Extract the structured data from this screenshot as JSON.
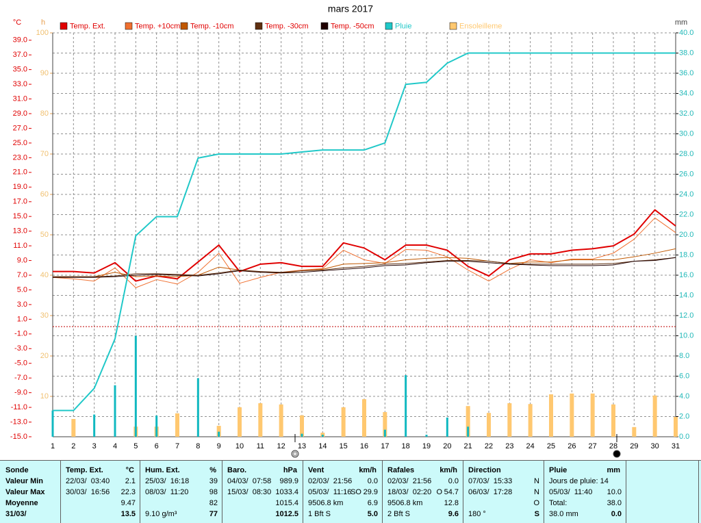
{
  "chart_data": {
    "type": "combo",
    "title": "mars 2017",
    "y_label": "°C",
    "y3_label": "h",
    "y2_label": "mm",
    "categories": [
      "1",
      "2",
      "3",
      "4",
      "5",
      "6",
      "7",
      "8",
      "9",
      "10",
      "11",
      "12",
      "13",
      "14",
      "15",
      "16",
      "17",
      "18",
      "19",
      "20",
      "21",
      "22",
      "23",
      "24",
      "25",
      "26",
      "27",
      "28",
      "29",
      "30",
      "31"
    ],
    "ylim": [
      -15,
      40
    ],
    "yticks": [
      {
        "value": -15,
        "label": "-15.0"
      },
      {
        "value": -13,
        "label": "-13.0"
      },
      {
        "value": -11,
        "label": "-11.0"
      },
      {
        "value": -9,
        "label": "-9.0"
      },
      {
        "value": -7,
        "label": "-7.0"
      },
      {
        "value": -5,
        "label": "-5.0"
      },
      {
        "value": -3,
        "label": "-3.0"
      },
      {
        "value": -1,
        "label": "-1.0"
      },
      {
        "value": 1,
        "label": "1.0"
      },
      {
        "value": 3,
        "label": "3.0"
      },
      {
        "value": 5,
        "label": "5.0"
      },
      {
        "value": 7,
        "label": "7.0"
      },
      {
        "value": 9,
        "label": "9.0"
      },
      {
        "value": 11,
        "label": "11.0"
      },
      {
        "value": 13,
        "label": "13.0"
      },
      {
        "value": 15,
        "label": "15.0"
      },
      {
        "value": 17,
        "label": "17.0"
      },
      {
        "value": 19,
        "label": "19.0"
      },
      {
        "value": 21,
        "label": "21.0"
      },
      {
        "value": 23,
        "label": "23.0"
      },
      {
        "value": 25,
        "label": "25.0"
      },
      {
        "value": 27,
        "label": "27.0"
      },
      {
        "value": 29,
        "label": "29.0"
      },
      {
        "value": 31,
        "label": "31.0"
      },
      {
        "value": 33,
        "label": "33.0"
      },
      {
        "value": 35,
        "label": "35.0"
      },
      {
        "value": 37,
        "label": "37.0"
      },
      {
        "value": 39,
        "label": "39.0"
      }
    ],
    "y3lim": [
      0,
      100
    ],
    "y3ticks": [
      10,
      20,
      30,
      40,
      50,
      60,
      70,
      80,
      90,
      100
    ],
    "y2lim": [
      0,
      40
    ],
    "y2ticks": [
      {
        "value": 0,
        "label": "0.0"
      },
      {
        "value": 2,
        "label": "2.0"
      },
      {
        "value": 4,
        "label": "4.0"
      },
      {
        "value": 6,
        "label": "6.0"
      },
      {
        "value": 8,
        "label": "8.0"
      },
      {
        "value": 10,
        "label": "10.0"
      },
      {
        "value": 12,
        "label": "12.0"
      },
      {
        "value": 14,
        "label": "14.0"
      },
      {
        "value": 16,
        "label": "16.0"
      },
      {
        "value": 18,
        "label": "18.0"
      },
      {
        "value": 20,
        "label": "20.0"
      },
      {
        "value": 22,
        "label": "22.0"
      },
      {
        "value": 24,
        "label": "24.0"
      },
      {
        "value": 26,
        "label": "26.0"
      },
      {
        "value": 28,
        "label": "28.0"
      },
      {
        "value": 30,
        "label": "30.0"
      },
      {
        "value": 32,
        "label": "32.0"
      },
      {
        "value": 34,
        "label": "34.0"
      },
      {
        "value": 36,
        "label": "36.0"
      },
      {
        "value": 38,
        "label": "38.0"
      },
      {
        "value": 40,
        "label": "40.0"
      }
    ],
    "grid": true,
    "series": [
      {
        "name": "Temp. Ext.",
        "color": "#e00000",
        "kind": "line",
        "line_width": 2,
        "axis": "y",
        "values": [
          7.5,
          7.5,
          7.3,
          8.7,
          6.2,
          6.9,
          6.5,
          8.8,
          11.1,
          7.5,
          8.5,
          8.7,
          8.2,
          8.2,
          11.4,
          10.7,
          9.1,
          11.1,
          11.1,
          10.4,
          8.2,
          6.9,
          9.1,
          9.9,
          9.9,
          10.4,
          10.6,
          11.0,
          12.6,
          15.9,
          13.7
        ]
      },
      {
        "name": "Temp. +10cm",
        "color": "#f07030",
        "kind": "line",
        "line_width": 1,
        "axis": "y",
        "values": [
          6.7,
          6.5,
          6.2,
          8.0,
          5.3,
          6.4,
          5.8,
          7.4,
          10.0,
          5.9,
          6.7,
          7.4,
          7.7,
          7.9,
          10.4,
          9.1,
          8.6,
          10.5,
          10.4,
          9.5,
          7.7,
          6.2,
          7.8,
          9.1,
          8.7,
          9.2,
          9.2,
          10.0,
          11.9,
          14.8,
          12.8
        ]
      },
      {
        "name": "Temp. -10cm",
        "color": "#c05800",
        "kind": "line",
        "line_width": 1,
        "axis": "y",
        "values": [
          6.7,
          6.8,
          6.8,
          7.4,
          6.8,
          6.9,
          6.8,
          7.0,
          8.1,
          7.7,
          7.4,
          7.3,
          7.6,
          7.8,
          8.5,
          8.6,
          8.7,
          9.1,
          9.3,
          9.4,
          9.3,
          8.9,
          8.6,
          8.8,
          8.8,
          9.1,
          9.1,
          9.1,
          9.5,
          10.0,
          10.6
        ]
      },
      {
        "name": "Temp. -30cm",
        "color": "#603010",
        "kind": "line",
        "line_width": 1,
        "axis": "y",
        "values": [
          6.8,
          6.8,
          6.8,
          6.9,
          7.2,
          7.2,
          7.1,
          7.0,
          7.3,
          7.7,
          7.5,
          7.4,
          7.6,
          7.7,
          8.0,
          8.2,
          8.5,
          8.6,
          8.8,
          9.0,
          9.0,
          8.9,
          8.6,
          8.5,
          8.5,
          8.5,
          8.5,
          8.6,
          8.9,
          9.1,
          9.4
        ]
      },
      {
        "name": "Temp. -50cm",
        "color": "#200000",
        "kind": "line",
        "line_width": 1,
        "axis": "y",
        "values": [
          6.7,
          6.7,
          6.7,
          6.8,
          7.0,
          7.1,
          7.0,
          6.9,
          7.2,
          7.6,
          7.4,
          7.3,
          7.4,
          7.6,
          7.8,
          8.0,
          8.3,
          8.4,
          8.7,
          8.9,
          8.9,
          8.7,
          8.5,
          8.4,
          8.3,
          8.3,
          8.3,
          8.4,
          8.9,
          9.0,
          9.4
        ]
      },
      {
        "name": "Pluie",
        "color": "#20c8c8",
        "kind": "line",
        "line_width": 2,
        "axis": "y2",
        "values": [
          2.6,
          2.6,
          4.8,
          9.7,
          19.9,
          21.8,
          21.8,
          27.6,
          28.0,
          28.0,
          28.0,
          28.0,
          28.2,
          28.4,
          28.4,
          28.4,
          29.1,
          34.9,
          35.1,
          37.0,
          38.0,
          38.0,
          38.0,
          38.0,
          38.0,
          38.0,
          38.0,
          38.0,
          38.0,
          38.0,
          38.0
        ]
      },
      {
        "name": "Ensoleilleme",
        "color": "#ffc870",
        "kind": "bar",
        "bar_width": 6,
        "axis": "y3",
        "values": [
          0,
          4.4,
          0,
          0,
          2.5,
          2.5,
          5.8,
          0,
          2.7,
          7.3,
          8.3,
          8.0,
          5.3,
          1.0,
          7.3,
          9.3,
          6.1,
          0,
          0,
          0,
          7.6,
          5.9,
          8.3,
          8.1,
          10.5,
          10.7,
          10.7,
          8.0,
          2.4,
          10.2,
          4.9
        ]
      }
    ],
    "rain_bars": {
      "color": "#10b8c0",
      "axis": "y2",
      "bar_width": 3,
      "values": [
        2.6,
        0,
        2.2,
        5.1,
        10.0,
        2.1,
        0,
        5.8,
        0.5,
        0,
        0,
        0,
        0.3,
        0.2,
        0,
        0,
        0.7,
        6.1,
        0.2,
        1.9,
        1.0,
        0,
        0,
        0,
        0,
        0,
        0,
        0,
        0,
        0,
        0
      ]
    }
  },
  "stats": {
    "row_labels": [
      "Sonde",
      "Valeur Min",
      "Valeur Max",
      "Moyenne",
      "31/03/"
    ],
    "columns": [
      {
        "title": "Temp. Ext.",
        "unit": "°C",
        "rows": [
          {
            "left": "22/03/  03:40",
            "right": "2.1"
          },
          {
            "left": "30/03/  16:56",
            "right": "22.3"
          },
          {
            "right": "9.47"
          },
          {
            "right": "13.5"
          }
        ]
      },
      {
        "title": "Hum. Ext.",
        "unit": "%",
        "rows": [
          {
            "left": "25/03/  16:18",
            "right": "39"
          },
          {
            "left": "08/03/  11:20",
            "right": "98"
          },
          {
            "right": "82"
          },
          {
            "left": "9.10 g/m³",
            "right": "77"
          }
        ]
      },
      {
        "title": "Baro.",
        "unit": "hPa",
        "rows": [
          {
            "left": "04/03/  07:58",
            "right": "989.9"
          },
          {
            "left": "15/03/  08:30",
            "right": "1033.4"
          },
          {
            "right": "1015.4"
          },
          {
            "right": "1012.5"
          }
        ]
      },
      {
        "title": "Vent",
        "unit": "km/h",
        "rows": [
          {
            "left": "02/03/  21:56",
            "right": "0.0"
          },
          {
            "left": "05/03/  11:16",
            "mid": "SO",
            "right": "29.9"
          },
          {
            "left": "9506.8 km",
            "right": "6.9"
          },
          {
            "left": "1 Bft S",
            "right": "5.0"
          }
        ]
      },
      {
        "title": "Rafales",
        "unit": "km/h",
        "rows": [
          {
            "left": "02/03/  21:56",
            "right": "0.0"
          },
          {
            "left": "18/03/  02:20",
            "mid": "O",
            "right": "54.7"
          },
          {
            "left": "9506.8 km",
            "right": "12.8"
          },
          {
            "left": "2 Bft S",
            "right": "9.6"
          }
        ]
      },
      {
        "title": "Direction",
        "rows": [
          {
            "left": "07/03/  15:33",
            "right": "N"
          },
          {
            "left": "06/03/  17:28",
            "right": "N"
          },
          {
            "right": "O"
          },
          {
            "left": "180 °",
            "right": "S"
          }
        ]
      },
      {
        "title": "Pluie",
        "unit": "mm",
        "rows": [
          {
            "left": "Jours de pluie: 14"
          },
          {
            "left": "05/03/  11:40",
            "right": "10.0"
          },
          {
            "left": "Total:",
            "right": "38.0"
          },
          {
            "left": "38.0 mm",
            "right": "0.0"
          }
        ]
      }
    ]
  }
}
